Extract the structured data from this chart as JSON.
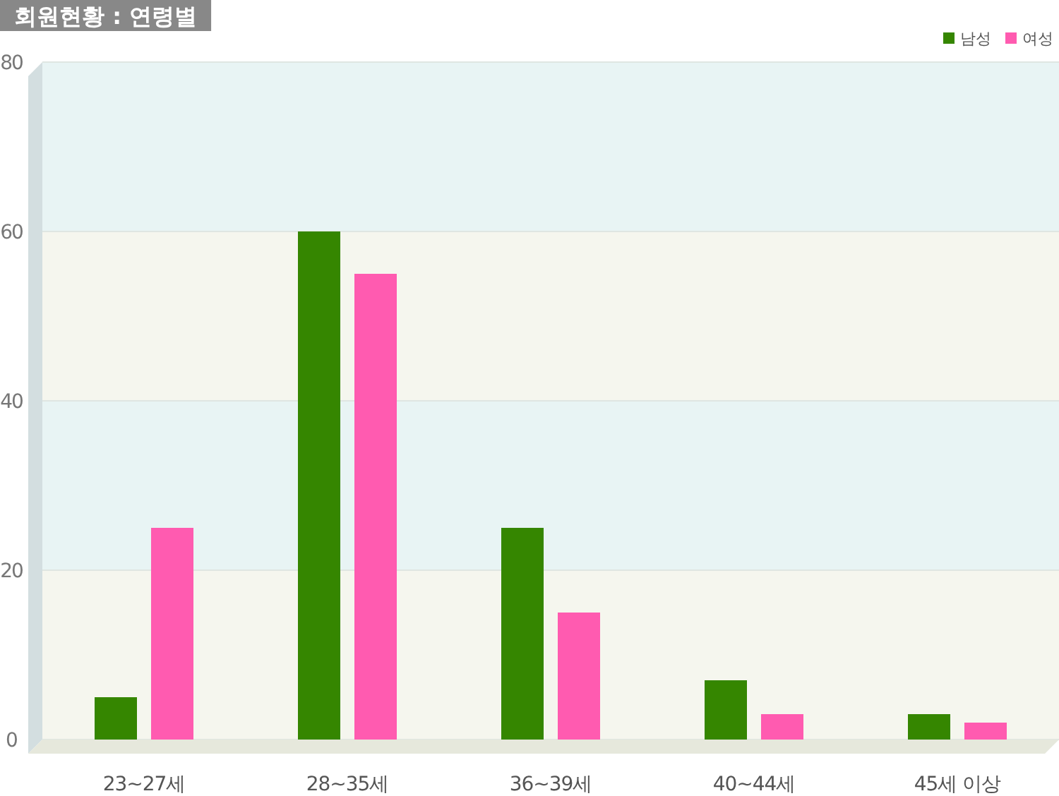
{
  "chart_data": {
    "type": "bar",
    "title": "회원현황 : 연령별",
    "categories": [
      "23~27세",
      "28~35세",
      "36~39세",
      "40~44세",
      "45세 이상"
    ],
    "series": [
      {
        "name": "남성",
        "color": "#358600",
        "values": [
          5,
          60,
          25,
          7,
          3
        ]
      },
      {
        "name": "여성",
        "color": "#ff5bb0",
        "values": [
          25,
          55,
          15,
          3,
          2
        ]
      }
    ],
    "ylim": [
      0,
      80
    ],
    "yticks": [
      0,
      20,
      40,
      60,
      80
    ],
    "grid": "y",
    "legend": "top right"
  }
}
